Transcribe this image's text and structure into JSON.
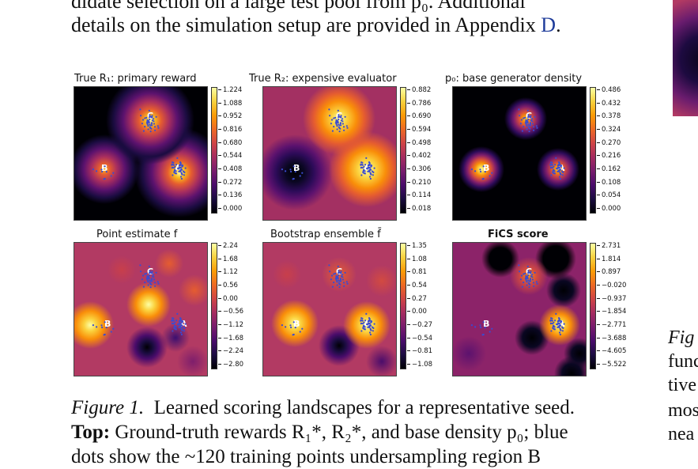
{
  "body_text": {
    "line1": "didate selection on a large test pool from p₀. Additional",
    "line2_before": "details on the simulation setup are provided in Appendix ",
    "line2_link": "D",
    "line2_after": "."
  },
  "side_text": {
    "fig_label": "Fig",
    "lines": [
      "func",
      "tive",
      "mos",
      "nea"
    ]
  },
  "panels": [
    {
      "id": "r1",
      "title": "True R₁: primary reward",
      "ticks": [
        "1.224",
        "1.088",
        "0.952",
        "0.816",
        "0.680",
        "0.544",
        "0.408",
        "0.272",
        "0.136",
        "0.000"
      ]
    },
    {
      "id": "r2",
      "title": "True R₂: expensive evaluator",
      "ticks": [
        "0.882",
        "0.786",
        "0.690",
        "0.594",
        "0.498",
        "0.402",
        "0.306",
        "0.210",
        "0.114",
        "0.018"
      ]
    },
    {
      "id": "p0",
      "title": "p₀: base generator density",
      "ticks": [
        "0.486",
        "0.432",
        "0.378",
        "0.324",
        "0.270",
        "0.216",
        "0.162",
        "0.108",
        "0.054",
        "0.000"
      ]
    },
    {
      "id": "f",
      "title": "Point estimate f",
      "ticks": [
        "2.24",
        "1.68",
        "1.12",
        "0.56",
        "0.00",
        "−0.56",
        "−1.12",
        "−1.68",
        "−2.24",
        "−2.80"
      ]
    },
    {
      "id": "fbar",
      "title": "Bootstrap ensemble f̄",
      "ticks": [
        "1.35",
        "1.08",
        "0.81",
        "0.54",
        "0.27",
        "0.00",
        "−0.27",
        "−0.54",
        "−0.81",
        "−1.08"
      ]
    },
    {
      "id": "fics",
      "title": "FiCS score",
      "ticks": [
        "2.731",
        "1.814",
        "0.897",
        "−0.020",
        "−0.937",
        "−1.854",
        "−2.771",
        "−3.688",
        "−4.605",
        "−5.522"
      ]
    }
  ],
  "region_labels": {
    "a": "A",
    "b": "B",
    "c": "C"
  },
  "caption": {
    "label": "Figure 1.",
    "line1": "Learned scoring landscapes for a representative seed.",
    "top_label": "Top:",
    "line2": "Ground-truth rewards R₁*, R₂*, and base density p₀; blue",
    "line3": "dots show the ~120 training points undersampling region B"
  },
  "colors": {
    "link": "#1f3c9a",
    "dots": "#3a4bd1",
    "colormap": "inferno"
  }
}
